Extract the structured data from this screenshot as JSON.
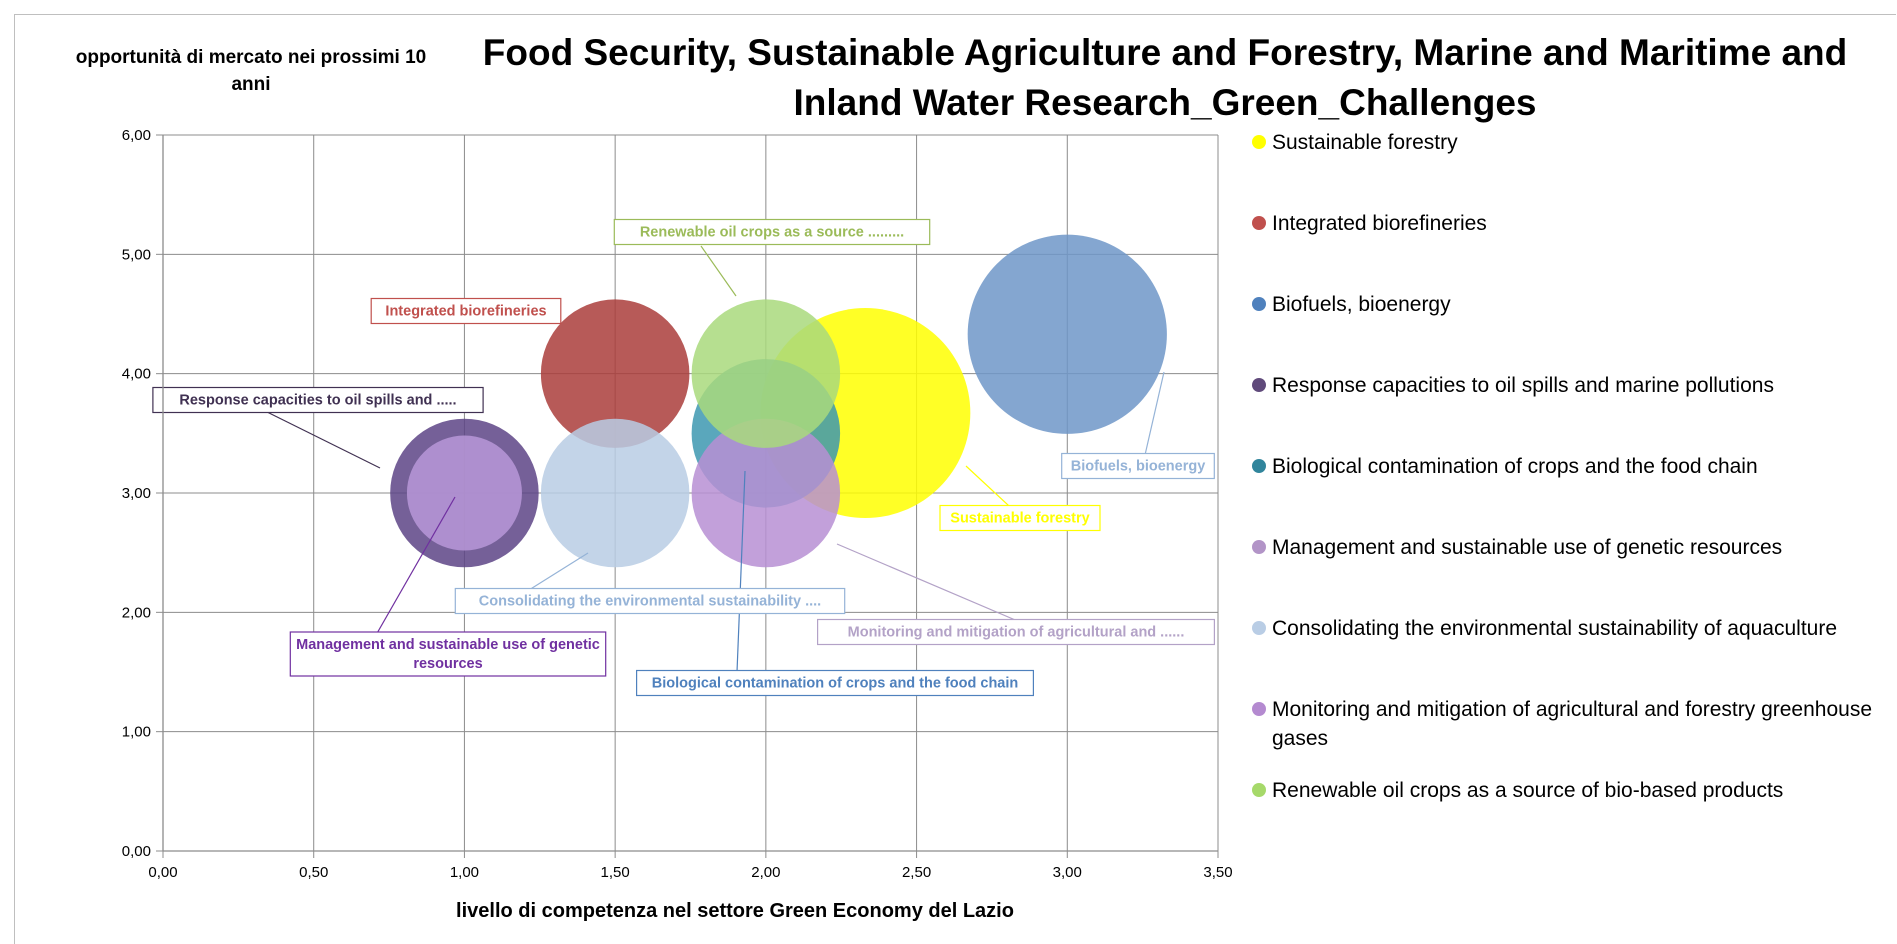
{
  "chart_data": {
    "type": "bubble",
    "title": "Food Security, Sustainable Agriculture and Forestry, Marine and Maritime and Inland Water Research_Green_Challenges",
    "xlabel": "livello di competenza nel settore Green Economy del Lazio",
    "ylabel": "opportunità di mercato nei prossimi 10 anni",
    "xlim": [
      0,
      3.5
    ],
    "ylim": [
      0,
      6
    ],
    "x_ticks": [
      "0,00",
      "0,50",
      "1,00",
      "1,50",
      "2,00",
      "2,50",
      "3,00",
      "3,50"
    ],
    "y_ticks": [
      "0,00",
      "1,00",
      "2,00",
      "3,00",
      "4,00",
      "5,00",
      "6,00"
    ],
    "grid": true,
    "legend_position": "right",
    "series": [
      {
        "name": "Sustainable forestry",
        "color": "#ffff00",
        "x": 2.33,
        "y": 3.67,
        "size": 1.0,
        "label": "Sustainable forestry"
      },
      {
        "name": "Integrated biorefineries",
        "color": "#aa3d3b",
        "x": 1.5,
        "y": 4.0,
        "size": 0.5,
        "label": "Integrated biorefineries"
      },
      {
        "name": "Biofuels, bioenergy",
        "color": "#6e97c8",
        "x": 3.0,
        "y": 4.33,
        "size": 0.9,
        "label": "Biofuels, bioenergy"
      },
      {
        "name": "Response capacities to oil spills and marine pollutions",
        "color": "#5d4486",
        "x": 1.0,
        "y": 3.0,
        "size": 0.5,
        "label": "Response capacities to oil spills and ....."
      },
      {
        "name": "Biological contamination of crops and the food chain",
        "color": "#3d98b0",
        "x": 2.0,
        "y": 3.5,
        "size": 0.5,
        "label": "Biological contamination of crops and the food chain"
      },
      {
        "name": "Management and sustainable use of genetic resources",
        "color": "#b898d8",
        "x": 1.0,
        "y": 3.0,
        "size": 0.3,
        "label": "Management and sustainable use of genetic resources"
      },
      {
        "name": "Consolidating the environmental sustainability of aquaculture",
        "color": "#b8cce4",
        "x": 1.5,
        "y": 3.0,
        "size": 0.5,
        "label": "Consolidating the environmental sustainability ...."
      },
      {
        "name": "Monitoring and mitigation of agricultural and forestry greenhouse gases",
        "color": "#b78fd4",
        "x": 2.0,
        "y": 3.0,
        "size": 0.5,
        "label": "Monitoring and mitigation of agricultural and ......"
      },
      {
        "name": "Renewable oil crops as a source of bio-based products",
        "color": "#a9d97c",
        "x": 2.0,
        "y": 4.0,
        "size": 0.5,
        "label": "Renewable oil crops as a source ........."
      }
    ]
  },
  "legend": [
    {
      "label": "Sustainable forestry",
      "color": "#ffff00"
    },
    {
      "label": "Integrated biorefineries",
      "color": "#c0504d"
    },
    {
      "label": "Biofuels, bioenergy",
      "color": "#4f81bd"
    },
    {
      "label": "Response capacities to oil spills and marine pollutions",
      "color": "#604a7b"
    },
    {
      "label": "Biological contamination of crops and the food chain",
      "color": "#31859c"
    },
    {
      "label": "Management and sustainable use of genetic resources",
      "color": "#b294c7"
    },
    {
      "label": "Consolidating the environmental sustainability of aquaculture",
      "color": "#b9cde5"
    },
    {
      "label": "Monitoring and mitigation of agricultural and forestry greenhouse gases",
      "color": "#b48ad0"
    },
    {
      "label": "Renewable oil crops as a source of bio-based products",
      "color": "#a6d96a"
    }
  ]
}
